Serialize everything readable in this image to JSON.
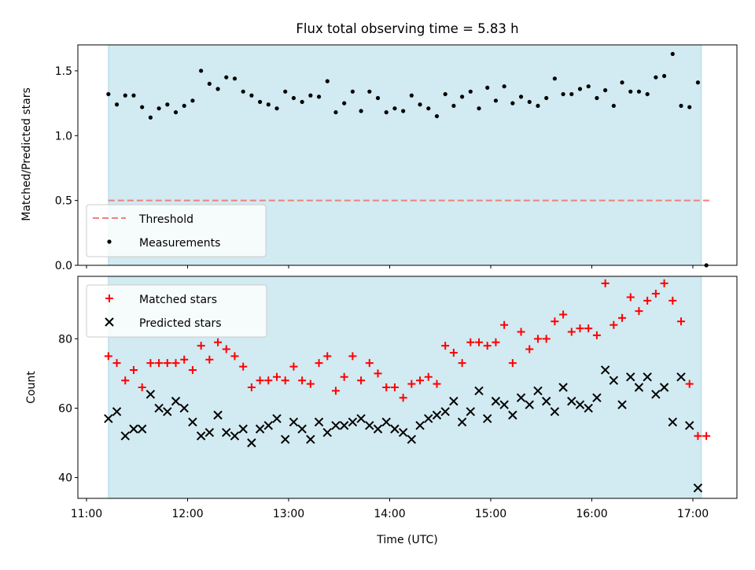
{
  "chart_data": [
    {
      "type": "scatter",
      "title": "Flux total observing time = 5.83 h",
      "xlabel": "",
      "ylabel": "Matched/Predicted stars",
      "ylim": [
        0,
        1.7
      ],
      "yticks": [
        0.0,
        0.5,
        1.0,
        1.5
      ],
      "ytick_labels": [
        "0.0",
        "0.5",
        "1.0",
        "1.5"
      ],
      "grid": false,
      "legend_position": "lower-left",
      "observing_window": {
        "start": "11:13",
        "end": "17:05",
        "color": "#add8e6"
      },
      "threshold": {
        "name": "Threshold",
        "value": 0.5,
        "color": "#f08080",
        "x_start": "11:13",
        "x_end": "17:10"
      },
      "series": [
        {
          "name": "Measurements",
          "color": "#000000",
          "marker": "dot",
          "x": [
            "11:13",
            "11:18",
            "11:23",
            "11:28",
            "11:33",
            "11:38",
            "11:43",
            "11:48",
            "11:53",
            "11:58",
            "12:03",
            "12:08",
            "12:13",
            "12:18",
            "12:23",
            "12:28",
            "12:33",
            "12:38",
            "12:43",
            "12:48",
            "12:53",
            "12:58",
            "13:03",
            "13:08",
            "13:13",
            "13:18",
            "13:23",
            "13:28",
            "13:33",
            "13:38",
            "13:43",
            "13:48",
            "13:53",
            "13:58",
            "14:03",
            "14:08",
            "14:13",
            "14:18",
            "14:23",
            "14:28",
            "14:33",
            "14:38",
            "14:43",
            "14:48",
            "14:53",
            "14:58",
            "15:03",
            "15:08",
            "15:13",
            "15:18",
            "15:23",
            "15:28",
            "15:33",
            "15:38",
            "15:43",
            "15:48",
            "15:53",
            "15:58",
            "16:03",
            "16:08",
            "16:13",
            "16:18",
            "16:23",
            "16:28",
            "16:33",
            "16:38",
            "16:43",
            "16:48",
            "16:53",
            "16:58",
            "17:03",
            "17:08"
          ],
          "y": [
            1.32,
            1.24,
            1.31,
            1.31,
            1.22,
            1.14,
            1.21,
            1.24,
            1.18,
            1.23,
            1.27,
            1.5,
            1.4,
            1.36,
            1.45,
            1.44,
            1.34,
            1.31,
            1.26,
            1.24,
            1.21,
            1.34,
            1.29,
            1.26,
            1.31,
            1.3,
            1.42,
            1.18,
            1.25,
            1.34,
            1.19,
            1.34,
            1.29,
            1.18,
            1.21,
            1.19,
            1.31,
            1.24,
            1.21,
            1.15,
            1.32,
            1.23,
            1.3,
            1.34,
            1.21,
            1.37,
            1.27,
            1.38,
            1.25,
            1.3,
            1.26,
            1.23,
            1.29,
            1.44,
            1.32,
            1.32,
            1.36,
            1.38,
            1.29,
            1.35,
            1.23,
            1.41,
            1.34,
            1.34,
            1.32,
            1.45,
            1.46,
            1.63,
            1.23,
            1.22,
            1.41,
            0.0
          ]
        }
      ]
    },
    {
      "type": "scatter",
      "title": "",
      "xlabel": "Time (UTC)",
      "ylabel": "Count",
      "xlim": [
        "11:00",
        "17:25"
      ],
      "ylim": [
        34,
        98
      ],
      "yticks": [
        40,
        60,
        80
      ],
      "ytick_labels": [
        "40",
        "60",
        "80"
      ],
      "xticks": [
        "11:00",
        "12:00",
        "13:00",
        "14:00",
        "15:00",
        "16:00",
        "17:00"
      ],
      "xtick_labels": [
        "11:00",
        "12:00",
        "13:00",
        "14:00",
        "15:00",
        "16:00",
        "17:00"
      ],
      "grid": false,
      "legend_position": "upper-left",
      "observing_window": {
        "start": "11:13",
        "end": "17:05",
        "color": "#add8e6"
      },
      "series": [
        {
          "name": "Matched stars",
          "color": "#ff0000",
          "marker": "plus",
          "x": [
            "11:13",
            "11:18",
            "11:23",
            "11:28",
            "11:33",
            "11:38",
            "11:43",
            "11:48",
            "11:53",
            "11:58",
            "12:03",
            "12:08",
            "12:13",
            "12:18",
            "12:23",
            "12:28",
            "12:33",
            "12:38",
            "12:43",
            "12:48",
            "12:53",
            "12:58",
            "13:03",
            "13:08",
            "13:13",
            "13:18",
            "13:23",
            "13:28",
            "13:33",
            "13:38",
            "13:43",
            "13:48",
            "13:53",
            "13:58",
            "14:03",
            "14:08",
            "14:13",
            "14:18",
            "14:23",
            "14:28",
            "14:33",
            "14:38",
            "14:43",
            "14:48",
            "14:53",
            "14:58",
            "15:03",
            "15:08",
            "15:13",
            "15:18",
            "15:23",
            "15:28",
            "15:33",
            "15:38",
            "15:43",
            "15:48",
            "15:53",
            "15:58",
            "16:03",
            "16:08",
            "16:13",
            "16:18",
            "16:23",
            "16:28",
            "16:33",
            "16:38",
            "16:43",
            "16:48",
            "16:53",
            "16:58",
            "17:03",
            "17:08"
          ],
          "y": [
            75,
            73,
            68,
            71,
            66,
            73,
            73,
            73,
            73,
            74,
            71,
            78,
            74,
            79,
            77,
            75,
            72,
            66,
            68,
            68,
            69,
            68,
            72,
            68,
            67,
            73,
            75,
            65,
            69,
            75,
            68,
            73,
            70,
            66,
            66,
            63,
            67,
            68,
            69,
            67,
            78,
            76,
            73,
            79,
            79,
            78,
            79,
            84,
            73,
            82,
            77,
            80,
            80,
            85,
            87,
            82,
            83,
            83,
            81,
            96,
            84,
            86,
            92,
            88,
            91,
            93,
            96,
            91,
            85,
            67,
            52,
            52
          ]
        },
        {
          "name": "Predicted stars",
          "color": "#000000",
          "marker": "x",
          "x": [
            "11:13",
            "11:18",
            "11:23",
            "11:28",
            "11:33",
            "11:38",
            "11:43",
            "11:48",
            "11:53",
            "11:58",
            "12:03",
            "12:08",
            "12:13",
            "12:18",
            "12:23",
            "12:28",
            "12:33",
            "12:38",
            "12:43",
            "12:48",
            "12:53",
            "12:58",
            "13:03",
            "13:08",
            "13:13",
            "13:18",
            "13:23",
            "13:28",
            "13:33",
            "13:38",
            "13:43",
            "13:48",
            "13:53",
            "13:58",
            "14:03",
            "14:08",
            "14:13",
            "14:18",
            "14:23",
            "14:28",
            "14:33",
            "14:38",
            "14:43",
            "14:48",
            "14:53",
            "14:58",
            "15:03",
            "15:08",
            "15:13",
            "15:18",
            "15:23",
            "15:28",
            "15:33",
            "15:38",
            "15:43",
            "15:48",
            "15:53",
            "15:58",
            "16:03",
            "16:08",
            "16:13",
            "16:18",
            "16:23",
            "16:28",
            "16:33",
            "16:38",
            "16:43",
            "16:48",
            "16:53",
            "16:58",
            "17:03",
            "17:08"
          ],
          "y": [
            57,
            59,
            52,
            54,
            54,
            64,
            60,
            59,
            62,
            60,
            56,
            52,
            53,
            58,
            53,
            52,
            54,
            50,
            54,
            55,
            57,
            51,
            56,
            54,
            51,
            56,
            53,
            55,
            55,
            56,
            57,
            55,
            54,
            56,
            54,
            53,
            51,
            55,
            57,
            58,
            59,
            62,
            56,
            59,
            65,
            57,
            62,
            61,
            58,
            63,
            61,
            65,
            62,
            59,
            66,
            62,
            61,
            60,
            63,
            71,
            68,
            61,
            69,
            66,
            69,
            64,
            66,
            56,
            69,
            55,
            37,
            null
          ]
        }
      ]
    }
  ]
}
